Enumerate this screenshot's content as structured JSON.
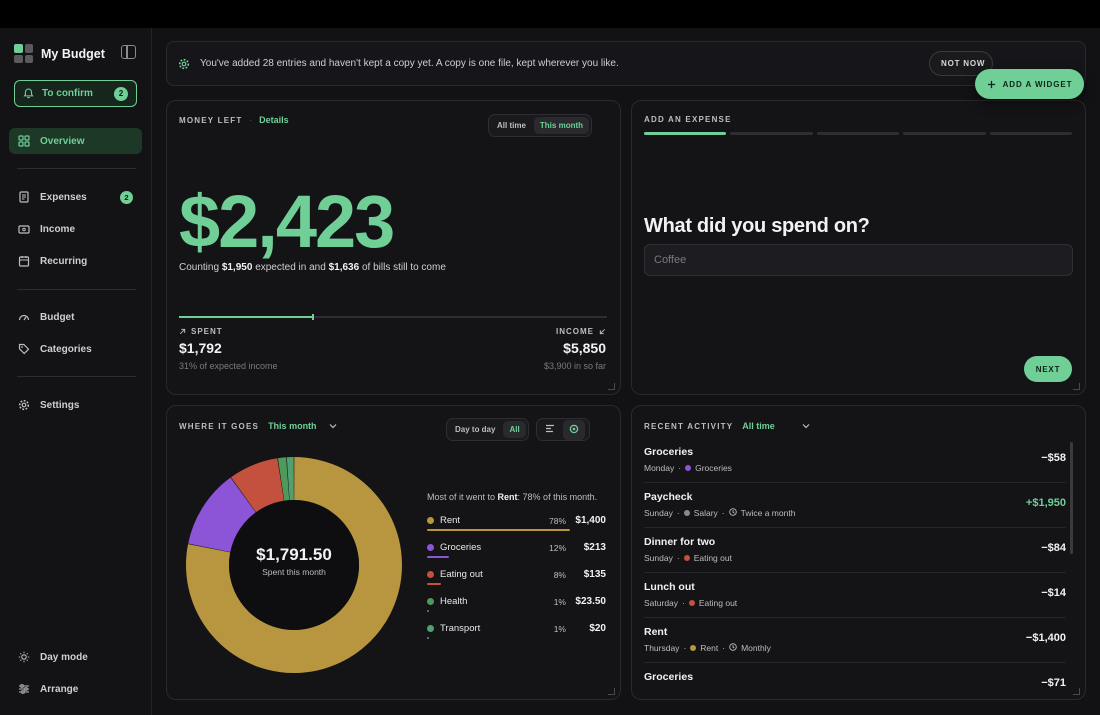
{
  "sidebar": {
    "brand": "My Budget",
    "confirm": {
      "label": "To confirm",
      "count": "2"
    },
    "items": [
      {
        "label": "Overview"
      },
      {
        "label": "Expenses",
        "badge": "2"
      },
      {
        "label": "Income"
      },
      {
        "label": "Recurring"
      },
      {
        "label": "Budget"
      },
      {
        "label": "Categories"
      },
      {
        "label": "Settings"
      }
    ],
    "bottom": {
      "day_mode": "Day mode",
      "arrange": "Arrange"
    }
  },
  "banner": {
    "message": "You've added 28 entries and haven't kept a copy yet. A copy is one file, kept wherever you like.",
    "not_now": "NOT NOW",
    "add_widget": "ADD A WIDGET"
  },
  "money_left": {
    "label": "MONEY LEFT",
    "details": "Details",
    "toggle": [
      "All time",
      "This month"
    ],
    "amount": "$2,423",
    "counting_prefix": "Counting",
    "expected_in": "$1,950",
    "counting_mid": "expected in and",
    "bills": "$1,636",
    "counting_suffix": "of bills still to come",
    "spent_fraction": 0.31,
    "spent_label": "SPENT",
    "spent_value": "$1,792",
    "spent_sub": "31% of expected income",
    "income_label": "INCOME",
    "income_value": "$5,850",
    "income_sub": "$3,900 in so far"
  },
  "add_expense": {
    "label": "ADD AN EXPENSE",
    "step_count": 5,
    "current_step": 1,
    "question": "What did you spend on?",
    "placeholder": "Coffee",
    "next": "NEXT"
  },
  "where_it_goes": {
    "label": "WHERE IT GOES",
    "period": "This month",
    "toggle": [
      "Day to day",
      "All"
    ],
    "total": "$1,791.50",
    "total_sub": "Spent this month",
    "most_prefix": "Most of it went to",
    "most_category": "Rent",
    "most_suffix": ": 78% of this month."
  },
  "chart_data": {
    "type": "pie",
    "categories": [
      "Rent",
      "Groceries",
      "Eating out",
      "Health",
      "Transport"
    ],
    "values": [
      1400,
      213,
      135,
      23.5,
      20
    ],
    "percent_labels": [
      "78%",
      "12%",
      "8%",
      "1%",
      "1%"
    ],
    "value_labels": [
      "$1,400",
      "$213",
      "$135",
      "$23.50",
      "$20"
    ],
    "colors": [
      "#b8963f",
      "#8c55d8",
      "#c4503e",
      "#4f9a5a",
      "#4fa170"
    ],
    "center_text": "$1,791.50",
    "center_subtext": "Spent this month"
  },
  "recent_activity": {
    "label": "RECENT ACTIVITY",
    "period": "All time",
    "items": [
      {
        "title": "Groceries",
        "day": "Monday",
        "category": "Groceries",
        "color": "#8c55d8",
        "amount": "−$58",
        "positive": false
      },
      {
        "title": "Paycheck",
        "day": "Sunday",
        "category": "Salary",
        "color": "#8a8a8e",
        "recurrence": "Twice a month",
        "amount": "+$1,950",
        "positive": true
      },
      {
        "title": "Dinner for two",
        "day": "Sunday",
        "category": "Eating out",
        "color": "#c4503e",
        "amount": "−$84",
        "positive": false
      },
      {
        "title": "Lunch out",
        "day": "Saturday",
        "category": "Eating out",
        "color": "#c4503e",
        "amount": "−$14",
        "positive": false
      },
      {
        "title": "Rent",
        "day": "Thursday",
        "category": "Rent",
        "color": "#b8963f",
        "recurrence": "Monthly",
        "amount": "−$1,400",
        "positive": false
      },
      {
        "title": "Groceries",
        "day": "",
        "category": "",
        "color": "#8c55d8",
        "amount": "−$71",
        "positive": false
      }
    ]
  }
}
